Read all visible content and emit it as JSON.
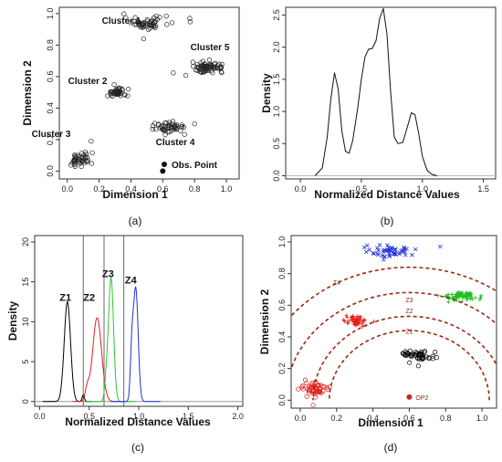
{
  "chart_data": [
    {
      "panel": "a",
      "type": "scatter",
      "caption": "(a)",
      "xlabel": "Dimension 1",
      "ylabel": "Dimension 2",
      "xlim": [
        -0.05,
        1.08
      ],
      "ylim": [
        -0.05,
        1.04
      ],
      "xticks": [
        "0.0",
        "0.2",
        "0.4",
        "0.6",
        "0.8",
        "1.0"
      ],
      "yticks": [
        "0.0",
        "0.2",
        "0.4",
        "0.6",
        "0.8",
        "1.0"
      ],
      "grid": false,
      "legend": {
        "label": "Obs. Point",
        "position": "bottom-right"
      },
      "observation_point": {
        "x": 0.6,
        "y": 0.0
      },
      "clusters": [
        {
          "name": "Cluster 1",
          "center": [
            0.5,
            0.94
          ],
          "spread": [
            0.07,
            0.02
          ],
          "count": 55
        },
        {
          "name": "Cluster 2",
          "center": [
            0.31,
            0.5
          ],
          "spread": [
            0.03,
            0.015
          ],
          "count": 45
        },
        {
          "name": "Cluster 3",
          "center": [
            0.08,
            0.07
          ],
          "spread": [
            0.04,
            0.025
          ],
          "count": 45
        },
        {
          "name": "Cluster 4",
          "center": [
            0.65,
            0.28
          ],
          "spread": [
            0.05,
            0.02
          ],
          "count": 50
        },
        {
          "name": "Cluster 5",
          "center": [
            0.88,
            0.66
          ],
          "spread": [
            0.05,
            0.015
          ],
          "count": 70
        }
      ],
      "outliers": [
        [
          0.77,
          0.97
        ],
        [
          0.15,
          0.19
        ],
        [
          0.8,
          0.3
        ],
        [
          0.48,
          0.84
        ]
      ]
    },
    {
      "panel": "b",
      "type": "line",
      "caption": "(b)",
      "xlabel": "Normalized Distance Values",
      "ylabel": "Density",
      "xlim": [
        -0.12,
        1.6
      ],
      "ylim": [
        -0.05,
        2.62
      ],
      "xticks": [
        "0.0",
        "0.5",
        "1.0",
        "1.5"
      ],
      "yticks": [
        "0.0",
        "0.5",
        "1.0",
        "1.5",
        "2.0",
        "2.5"
      ],
      "grid": false,
      "series": [
        {
          "x": [
            0.12,
            0.18,
            0.22,
            0.25,
            0.28,
            0.31,
            0.34,
            0.37,
            0.4,
            0.43,
            0.47,
            0.5,
            0.53,
            0.56,
            0.59,
            0.62,
            0.65,
            0.68,
            0.71,
            0.74,
            0.77,
            0.8,
            0.84,
            0.88,
            0.91,
            0.94,
            0.97,
            1.0,
            1.04,
            1.08,
            1.12
          ],
          "y": [
            0.0,
            0.12,
            0.6,
            1.2,
            1.6,
            1.35,
            0.7,
            0.38,
            0.35,
            0.55,
            1.05,
            1.5,
            1.85,
            1.97,
            1.98,
            2.1,
            2.45,
            2.6,
            2.2,
            1.3,
            0.6,
            0.5,
            0.52,
            0.78,
            0.98,
            0.95,
            0.65,
            0.3,
            0.08,
            0.02,
            0.0
          ]
        }
      ]
    },
    {
      "panel": "c",
      "type": "line",
      "caption": "(c)",
      "xlabel": "Normalized Distance Values",
      "ylabel": "Density",
      "xlim": [
        -0.05,
        2.05
      ],
      "ylim": [
        -0.6,
        20.8
      ],
      "xticks": [
        "0.0",
        "0.5",
        "1.0",
        "1.5",
        "2.0"
      ],
      "yticks": [
        "0",
        "5",
        "10",
        "15",
        "20"
      ],
      "grid": false,
      "vlines": [
        0.44,
        0.65,
        0.85
      ],
      "zone_labels": [
        {
          "text": "Z1",
          "x": 0.26,
          "y": 12.6
        },
        {
          "text": "Z2",
          "x": 0.5,
          "y": 12.6
        },
        {
          "text": "Z3",
          "x": 0.69,
          "y": 15.6
        },
        {
          "text": "Z4",
          "x": 0.92,
          "y": 14.8
        }
      ],
      "series": [
        {
          "color": "#000000",
          "center": 0.28,
          "width": 0.032,
          "height": 12.5,
          "extra": [
            0.44,
            0.012,
            0.8
          ]
        },
        {
          "color": "#e02020",
          "center": 0.58,
          "width": 0.045,
          "height": 10.5,
          "extra": [
            0.48,
            0.02,
            1.5
          ]
        },
        {
          "color": "#2ec72e",
          "center": 0.72,
          "width": 0.026,
          "height": 15.5,
          "extra": [
            0.67,
            0.015,
            2.0
          ]
        },
        {
          "color": "#2030e0",
          "center": 0.97,
          "width": 0.024,
          "height": 14.2,
          "extra": [
            0.93,
            0.015,
            5.5
          ]
        }
      ]
    },
    {
      "panel": "d",
      "type": "scatter",
      "caption": "(d)",
      "xlabel": "Dimension 1",
      "ylabel": "Dimension 2",
      "xlim": [
        -0.05,
        1.08
      ],
      "ylim": [
        -0.05,
        1.04
      ],
      "xticks": [
        "0.0",
        "0.2",
        "0.4",
        "0.6",
        "0.8",
        "1.0"
      ],
      "yticks": [
        "0.0",
        "0.2",
        "0.4",
        "0.6",
        "0.8",
        "1.0"
      ],
      "grid": false,
      "observation_point": {
        "x": 0.6,
        "y": 0.0,
        "label": "OP2"
      },
      "arc_labels": [
        "Z4",
        "Z3",
        "Z2",
        "Z1"
      ],
      "arcs": [
        {
          "radius": 0.84,
          "label": "Z4",
          "label_at": [
            0.2,
            0.73
          ]
        },
        {
          "radius": 0.68,
          "label": "Z3",
          "label_at": [
            0.6,
            0.62
          ]
        },
        {
          "radius": 0.53,
          "label": "Z2",
          "label_at": [
            0.6,
            0.55
          ]
        },
        {
          "radius": 0.44,
          "label": "Z1",
          "label_at": [
            0.6,
            0.42
          ]
        }
      ],
      "arc_color": "#9b2a12",
      "clusters": [
        {
          "center": [
            0.5,
            0.94
          ],
          "spread": [
            0.07,
            0.02
          ],
          "count": 55,
          "color": "#2233dd",
          "marker": "x"
        },
        {
          "center": [
            0.31,
            0.5
          ],
          "spread": [
            0.03,
            0.015
          ],
          "count": 60,
          "color": "#e02020",
          "marker": "+"
        },
        {
          "center": [
            0.08,
            0.07
          ],
          "spread": [
            0.04,
            0.025
          ],
          "count": 55,
          "color": "#e02020",
          "marker": "circle"
        },
        {
          "center": [
            0.65,
            0.28
          ],
          "spread": [
            0.05,
            0.02
          ],
          "count": 50,
          "color": "#000000",
          "marker": "circle"
        },
        {
          "center": [
            0.88,
            0.66
          ],
          "spread": [
            0.05,
            0.015
          ],
          "count": 80,
          "color": "#22bb22",
          "marker": "+"
        }
      ],
      "outliers": [
        [
          0.77,
          0.97,
          "#2233dd",
          "x"
        ]
      ]
    }
  ]
}
